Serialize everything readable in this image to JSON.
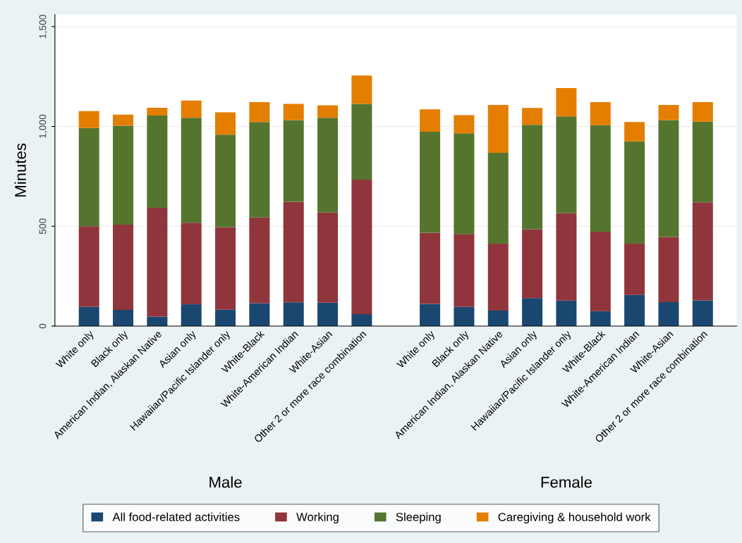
{
  "chart_data": {
    "type": "bar",
    "stacked": true,
    "ylabel": "Minutes",
    "categories": [
      "White only",
      "Black only",
      "American Indian, Alaskan Native",
      "Asian only",
      "Hawaiian/Pacific Islander only",
      "White-Black",
      "White-American Indian",
      "White-Asian",
      "Other 2 or more race combination",
      null,
      "White only",
      "Black only",
      "American Indian, Alaskan Native",
      "Asian only",
      "Hawaiian/Pacific Islander only",
      "White-Black",
      "White-American Indian",
      "White-Asian",
      "Other 2 or more race combination"
    ],
    "series": [
      {
        "name": "All food-related activities",
        "color": "#1a476f",
        "values": [
          97,
          81,
          48,
          109,
          82,
          115,
          119,
          117,
          60,
          null,
          111,
          96,
          78,
          140,
          128,
          75,
          156,
          120,
          129
        ]
      },
      {
        "name": "Working",
        "color": "#90353b",
        "values": [
          403,
          427,
          545,
          409,
          414,
          429,
          504,
          452,
          674,
          null,
          356,
          365,
          335,
          345,
          437,
          398,
          257,
          326,
          491
        ]
      },
      {
        "name": "Sleeping",
        "color": "#55752f",
        "values": [
          492,
          496,
          462,
          525,
          463,
          478,
          409,
          474,
          379,
          null,
          507,
          505,
          455,
          523,
          485,
          533,
          512,
          586,
          404
        ]
      },
      {
        "name": "Caregiving & household work",
        "color": "#e37e00",
        "values": [
          85,
          55,
          39,
          87,
          112,
          100,
          81,
          63,
          142,
          null,
          112,
          91,
          240,
          85,
          142,
          116,
          97,
          76,
          98
        ]
      }
    ],
    "ylim": [
      0,
      1560
    ],
    "yticks": [
      0,
      500,
      {
        "value": 1000,
        "label": "1,000"
      },
      {
        "value": 1500,
        "label": "1,500"
      }
    ],
    "grid": "y",
    "legend": "bottom",
    "annotations": [
      "Male",
      "Female"
    ]
  }
}
